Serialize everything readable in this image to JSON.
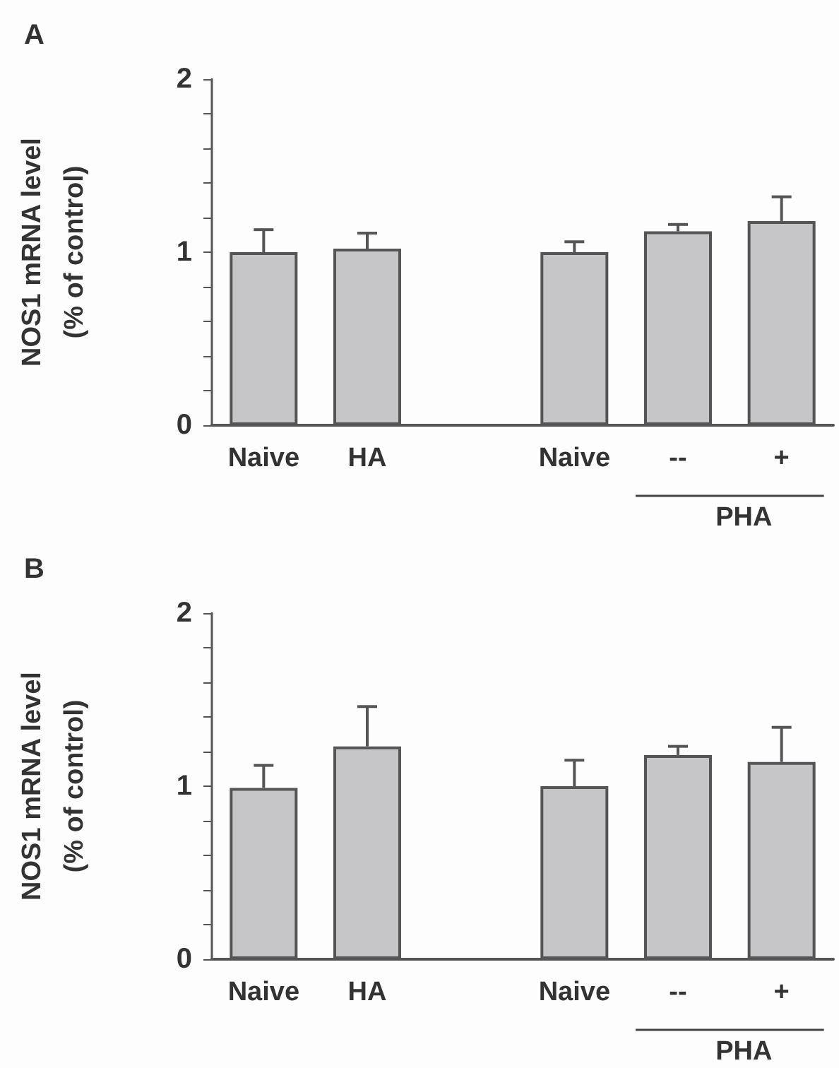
{
  "chart_data": [
    {
      "type": "bar",
      "title": "A",
      "ylabel": "NOS1 mRNA level\n(% of control)",
      "categories": [
        "Naive",
        "HA",
        null,
        "Naive",
        "--",
        "+"
      ],
      "values": [
        1.0,
        1.02,
        null,
        1.0,
        1.12,
        1.18
      ],
      "errors": [
        0.13,
        0.09,
        null,
        0.06,
        0.04,
        0.14
      ],
      "color": "#c6c6c8",
      "ylim": [
        0,
        2
      ],
      "yticks": [
        0,
        {
          "value": 0.2,
          "label": null
        },
        {
          "value": 0.4,
          "label": null
        },
        {
          "value": 0.6,
          "label": null
        },
        {
          "value": 0.8,
          "label": null
        },
        1,
        {
          "value": 1.2,
          "label": null
        },
        {
          "value": 1.4,
          "label": null
        },
        {
          "value": 1.6,
          "label": null
        },
        {
          "value": 1.8,
          "label": null
        },
        2
      ],
      "grid": false,
      "annotations": [
        "PHA"
      ]
    },
    {
      "type": "bar",
      "title": "B",
      "ylabel": "NOS1 mRNA level\n(% of control)",
      "categories": [
        "Naive",
        "HA",
        null,
        "Naive",
        "--",
        "+"
      ],
      "values": [
        0.99,
        1.23,
        null,
        1.0,
        1.18,
        1.14
      ],
      "errors": [
        0.13,
        0.23,
        null,
        0.15,
        0.05,
        0.2
      ],
      "color": "#c6c6c8",
      "ylim": [
        0,
        2
      ],
      "yticks": [
        0,
        {
          "value": 0.2,
          "label": null
        },
        {
          "value": 0.4,
          "label": null
        },
        {
          "value": 0.6,
          "label": null
        },
        {
          "value": 0.8,
          "label": null
        },
        1,
        {
          "value": 1.2,
          "label": null
        },
        {
          "value": 1.4,
          "label": null
        },
        {
          "value": 1.6,
          "label": null
        },
        {
          "value": 1.8,
          "label": null
        },
        2
      ],
      "grid": false,
      "annotations": [
        "PHA"
      ]
    }
  ]
}
